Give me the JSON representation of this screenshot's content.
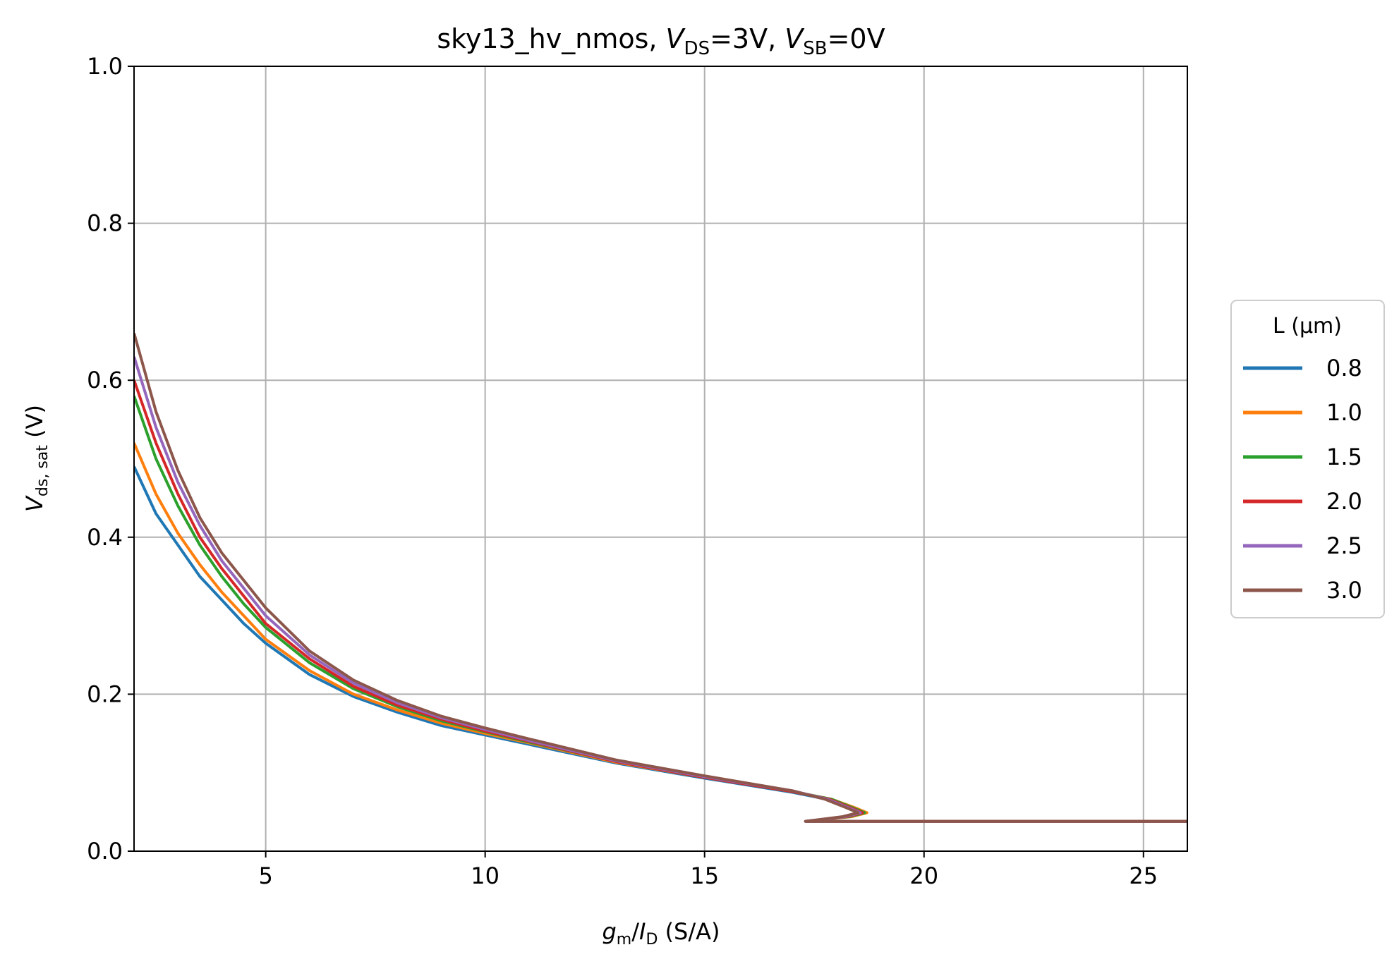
{
  "chart_data": {
    "type": "line",
    "title": {
      "prefix": "sky13_hv_nmos, ",
      "v1": "V",
      "v1_sub": "DS",
      "v1_rest": "=3V, ",
      "v2": "V",
      "v2_sub": "SB",
      "v2_rest": "=0V"
    },
    "xlabel": {
      "g": "g",
      "g_sub": "m",
      "slash": "/",
      "i": "I",
      "i_sub": "D",
      "unit": " (S/A)"
    },
    "ylabel": {
      "v": "V",
      "v_sub": "ds, sat",
      "unit": " (V)"
    },
    "xlim": [
      2,
      26
    ],
    "ylim": [
      0,
      1.0
    ],
    "xticks": [
      5,
      10,
      15,
      20,
      25
    ],
    "xtick_labels": [
      "5",
      "10",
      "15",
      "20",
      "25"
    ],
    "yticks": [
      0.0,
      0.2,
      0.4,
      0.6,
      0.8,
      1.0
    ],
    "ytick_labels": [
      "0.0",
      "0.2",
      "0.4",
      "0.6",
      "0.8",
      "1.0"
    ],
    "grid": true,
    "legend": {
      "title": "L (µm)",
      "placement": "outside-right"
    },
    "series": [
      {
        "name": "0.8",
        "color": "#1f77b4",
        "x": [
          2.0,
          2.5,
          3.0,
          3.5,
          4.0,
          4.5,
          5.0,
          6.0,
          7.0,
          8.0,
          9.0,
          10.0,
          11.0,
          13.0,
          15.0,
          17.0,
          17.8,
          18.3,
          18.6,
          18.3,
          17.3,
          20.0,
          26.0
        ],
        "y": [
          0.49,
          0.43,
          0.39,
          0.35,
          0.32,
          0.29,
          0.265,
          0.225,
          0.197,
          0.177,
          0.16,
          0.148,
          0.136,
          0.112,
          0.093,
          0.075,
          0.066,
          0.056,
          0.049,
          0.044,
          0.038,
          0.038,
          0.038
        ]
      },
      {
        "name": "1.0",
        "color": "#ff7f0e",
        "x": [
          2.0,
          2.5,
          3.0,
          3.5,
          4.0,
          4.5,
          5.0,
          6.0,
          7.0,
          8.0,
          9.0,
          10.0,
          11.0,
          13.0,
          15.0,
          17.0,
          17.9,
          18.4,
          18.7,
          18.35,
          17.3,
          20.0,
          26.0
        ],
        "y": [
          0.52,
          0.455,
          0.405,
          0.365,
          0.33,
          0.3,
          0.27,
          0.23,
          0.2,
          0.18,
          0.163,
          0.15,
          0.138,
          0.113,
          0.094,
          0.076,
          0.066,
          0.056,
          0.049,
          0.044,
          0.038,
          0.038,
          0.038
        ]
      },
      {
        "name": "1.5",
        "color": "#2ca02c",
        "x": [
          2.0,
          2.5,
          3.0,
          3.5,
          4.0,
          4.5,
          5.0,
          6.0,
          7.0,
          8.0,
          9.0,
          10.0,
          11.0,
          13.0,
          15.0,
          17.0,
          17.9,
          18.35,
          18.65,
          18.3,
          17.3,
          20.0,
          26.0
        ],
        "y": [
          0.58,
          0.5,
          0.44,
          0.39,
          0.35,
          0.315,
          0.285,
          0.24,
          0.207,
          0.184,
          0.166,
          0.152,
          0.139,
          0.114,
          0.094,
          0.076,
          0.066,
          0.056,
          0.049,
          0.044,
          0.038,
          0.038,
          0.038
        ]
      },
      {
        "name": "2.0",
        "color": "#d62728",
        "x": [
          2.0,
          2.5,
          3.0,
          3.5,
          4.0,
          4.5,
          5.0,
          6.0,
          7.0,
          8.0,
          9.0,
          10.0,
          11.0,
          13.0,
          15.0,
          17.0,
          17.85,
          18.3,
          18.6,
          18.25,
          17.3,
          20.0,
          26.0
        ],
        "y": [
          0.6,
          0.52,
          0.455,
          0.4,
          0.36,
          0.325,
          0.29,
          0.245,
          0.21,
          0.186,
          0.168,
          0.153,
          0.14,
          0.114,
          0.094,
          0.076,
          0.066,
          0.056,
          0.049,
          0.044,
          0.038,
          0.038,
          0.038
        ]
      },
      {
        "name": "2.5",
        "color": "#9467bd",
        "x": [
          2.0,
          2.5,
          3.0,
          3.5,
          4.0,
          4.5,
          5.0,
          6.0,
          7.0,
          8.0,
          9.0,
          10.0,
          11.0,
          13.0,
          15.0,
          17.0,
          17.8,
          18.25,
          18.55,
          18.2,
          17.3,
          20.0,
          26.0
        ],
        "y": [
          0.63,
          0.54,
          0.47,
          0.415,
          0.37,
          0.335,
          0.3,
          0.25,
          0.214,
          0.189,
          0.17,
          0.155,
          0.141,
          0.115,
          0.095,
          0.077,
          0.066,
          0.056,
          0.049,
          0.044,
          0.038,
          0.038,
          0.038
        ]
      },
      {
        "name": "3.0",
        "color": "#8c564b",
        "x": [
          2.0,
          2.5,
          3.0,
          3.5,
          4.0,
          4.5,
          5.0,
          6.0,
          7.0,
          8.0,
          9.0,
          10.0,
          11.0,
          13.0,
          15.0,
          17.0,
          17.75,
          18.2,
          18.5,
          18.15,
          17.3,
          20.0,
          26.0
        ],
        "y": [
          0.66,
          0.56,
          0.485,
          0.425,
          0.38,
          0.345,
          0.31,
          0.255,
          0.218,
          0.192,
          0.172,
          0.157,
          0.143,
          0.116,
          0.096,
          0.077,
          0.066,
          0.056,
          0.049,
          0.044,
          0.038,
          0.038,
          0.038
        ]
      }
    ]
  }
}
